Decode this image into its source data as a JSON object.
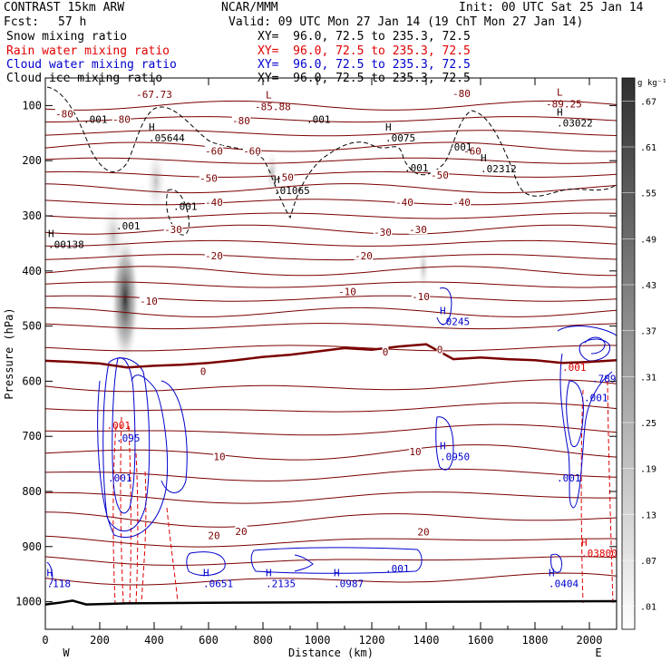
{
  "header": {
    "model": "CONTRAST 15km ARW",
    "org": "NCAR/MMM",
    "init": "Init: 00 UTC Sat 25 Jan 14",
    "fcst_label": "Fcst:",
    "fcst_value": "57 h",
    "valid": "Valid: 09 UTC Mon 27 Jan 14 (19 ChT Mon 27 Jan 14)"
  },
  "fields": [
    {
      "name": "Snow mixing ratio",
      "xy": "XY=  96.0, 72.5 to 235.3, 72.5",
      "color": "#000000"
    },
    {
      "name": "Rain water mixing ratio",
      "xy": "XY=  96.0, 72.5 to 235.3, 72.5",
      "color": "#e00000"
    },
    {
      "name": "Cloud water mixing ratio",
      "xy": "XY=  96.0, 72.5 to 235.3, 72.5",
      "color": "#0000cc"
    },
    {
      "name": "Cloud ice mixing ratio",
      "xy": "XY=  96.0, 72.5 to 235.3, 72.5",
      "color": "#000000"
    }
  ],
  "colors": {
    "temperature": "#7a0000",
    "freezing": "#7a0000",
    "rain": "#e00000",
    "cloud_water": "#0000cc",
    "cloud_ice": "#000000",
    "ground": "#000000"
  },
  "chart_data": {
    "type": "cross-section",
    "xlabel": "Distance (km)",
    "ylabel": "Pressure (hPa)",
    "xlim": [
      0,
      2100
    ],
    "ylim": [
      1050,
      50
    ],
    "xticks": [
      0,
      200,
      400,
      600,
      800,
      1000,
      1200,
      1400,
      1600,
      1800,
      2000
    ],
    "yticks": [
      100,
      200,
      300,
      400,
      500,
      600,
      700,
      800,
      900,
      1000
    ],
    "x_endpoints": {
      "left": "W",
      "right": "E"
    },
    "colorbar": {
      "units": "g kg⁻¹",
      "ticks": [
        ".01",
        ".07",
        ".13",
        ".19",
        ".25",
        ".31",
        ".37",
        ".43",
        ".49",
        ".55",
        ".61",
        ".67"
      ]
    },
    "temperature_labels": [
      {
        "text": "-67.73",
        "x": 400,
        "p": 80
      },
      {
        "text": "-80",
        "x": 70,
        "p": 115
      },
      {
        "text": "-80",
        "x": 280,
        "p": 125
      },
      {
        "text": "-80",
        "x": 720,
        "p": 127
      },
      {
        "text": "-80",
        "x": 1530,
        "p": 78
      },
      {
        "text": "-60",
        "x": 620,
        "p": 182
      },
      {
        "text": "-60",
        "x": 760,
        "p": 182
      },
      {
        "text": "-60",
        "x": 1570,
        "p": 182
      },
      {
        "text": "-50",
        "x": 600,
        "p": 232
      },
      {
        "text": "-50",
        "x": 880,
        "p": 230
      },
      {
        "text": "-50",
        "x": 1450,
        "p": 226
      },
      {
        "text": "-40",
        "x": 620,
        "p": 275
      },
      {
        "text": "-40",
        "x": 1320,
        "p": 275
      },
      {
        "text": "-40",
        "x": 1530,
        "p": 275
      },
      {
        "text": "-30",
        "x": 470,
        "p": 325
      },
      {
        "text": "-30",
        "x": 1240,
        "p": 330
      },
      {
        "text": "-30",
        "x": 1370,
        "p": 325
      },
      {
        "text": "-20",
        "x": 620,
        "p": 372
      },
      {
        "text": "-20",
        "x": 1170,
        "p": 372
      },
      {
        "text": "-10",
        "x": 380,
        "p": 455
      },
      {
        "text": "-10",
        "x": 1110,
        "p": 437
      },
      {
        "text": "-10",
        "x": 1380,
        "p": 446
      },
      {
        "text": "0",
        "x": 580,
        "p": 582
      },
      {
        "text": "0",
        "x": 1250,
        "p": 547
      },
      {
        "text": "0",
        "x": 1450,
        "p": 543
      },
      {
        "text": "10",
        "x": 640,
        "p": 737
      },
      {
        "text": "10",
        "x": 1360,
        "p": 728
      },
      {
        "text": "20",
        "x": 620,
        "p": 880
      },
      {
        "text": "20",
        "x": 720,
        "p": 872
      },
      {
        "text": "20",
        "x": 1390,
        "p": 873
      }
    ],
    "low_centers": [
      {
        "label": "L",
        "value": "-85.88",
        "x": 830,
        "p": 97
      },
      {
        "label": "L",
        "value": "-89.25",
        "x": 1900,
        "p": 92
      }
    ],
    "high_centers": [
      {
        "value": ".05644",
        "x": 380,
        "p": 152,
        "color": "#000000"
      },
      {
        "value": ".0075",
        "x": 1250,
        "p": 152,
        "color": "#000000"
      },
      {
        "value": ".03022",
        "x": 1880,
        "p": 125,
        "color": "#000000"
      },
      {
        "value": ".02312",
        "x": 1600,
        "p": 208,
        "color": "#000000"
      },
      {
        "value": ".01065",
        "x": 840,
        "p": 247,
        "color": "#000000"
      },
      {
        "value": ".00138",
        "x": 10,
        "p": 345,
        "color": "#000000"
      },
      {
        "value": ".0245",
        "x": 1450,
        "p": 485,
        "color": "#0000cc"
      },
      {
        "value": ".0950",
        "x": 1450,
        "p": 730,
        "color": "#0000cc"
      },
      {
        "value": ".118",
        "x": 5,
        "p": 960,
        "color": "#0000cc"
      },
      {
        "value": ".0651",
        "x": 580,
        "p": 960,
        "color": "#0000cc"
      },
      {
        "value": ".2135",
        "x": 810,
        "p": 960,
        "color": "#0000cc"
      },
      {
        "value": ".0987",
        "x": 1060,
        "p": 960,
        "color": "#0000cc"
      },
      {
        "value": ".0404",
        "x": 1850,
        "p": 960,
        "color": "#0000cc"
      },
      {
        "value": ".03800",
        "x": 1970,
        "p": 905,
        "color": "#e00000"
      }
    ],
    "isoline_labels": [
      {
        "text": ".001",
        "x": 140,
        "p": 125,
        "color": "#000000"
      },
      {
        "text": ".001",
        "x": 960,
        "p": 125,
        "color": "#000000"
      },
      {
        "text": ".001",
        "x": 1320,
        "p": 213,
        "color": "#000000"
      },
      {
        "text": ".001",
        "x": 1480,
        "p": 175,
        "color": "#000000"
      },
      {
        "text": ".001",
        "x": 470,
        "p": 283,
        "color": "#000000"
      },
      {
        "text": ".001",
        "x": 260,
        "p": 318,
        "color": "#000000"
      },
      {
        "text": ".001",
        "x": 1250,
        "p": 940,
        "color": "#0000cc"
      },
      {
        "text": ".001",
        "x": 230,
        "p": 775,
        "color": "#0000cc"
      },
      {
        "text": ".001",
        "x": 1880,
        "p": 775,
        "color": "#0000cc"
      },
      {
        "text": ".001",
        "x": 1980,
        "p": 630,
        "color": "#0000cc"
      },
      {
        "text": ".095",
        "x": 260,
        "p": 703,
        "color": "#0000cc"
      },
      {
        "text": ".789",
        "x": 2010,
        "p": 595,
        "color": "#0000cc"
      },
      {
        "text": ".001",
        "x": 225,
        "p": 680,
        "color": "#e00000"
      },
      {
        "text": ".001",
        "x": 1900,
        "p": 575,
        "color": "#e00000"
      }
    ]
  }
}
